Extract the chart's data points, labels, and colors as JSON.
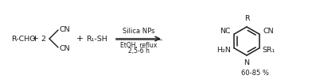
{
  "bg_color": "#ffffff",
  "text_color": "#1a1a1a",
  "fig_width": 3.92,
  "fig_height": 1.05,
  "dpi": 100,
  "reactant1": "R-CHO",
  "plus1": "+",
  "coeff2": "2",
  "malononitrile_cn_top": "CN",
  "malononitrile_cn_bot": "CN",
  "plus2": "+",
  "reactant3_text": "R₁-SH",
  "arrow_above": "Silica NPs",
  "arrow_line1": "EtOH, reflux",
  "arrow_line2": "2,5-6 h",
  "product_R": "R",
  "product_NC": "NC",
  "product_CN": "CN",
  "product_H2N": "H₂N",
  "product_N": "N",
  "product_SR1": "SR₁",
  "yield_text": "60-85 %",
  "font_size_main": 6.8,
  "font_size_arrow": 6.0,
  "font_size_yield": 6.0,
  "font_family": "DejaVu Sans"
}
